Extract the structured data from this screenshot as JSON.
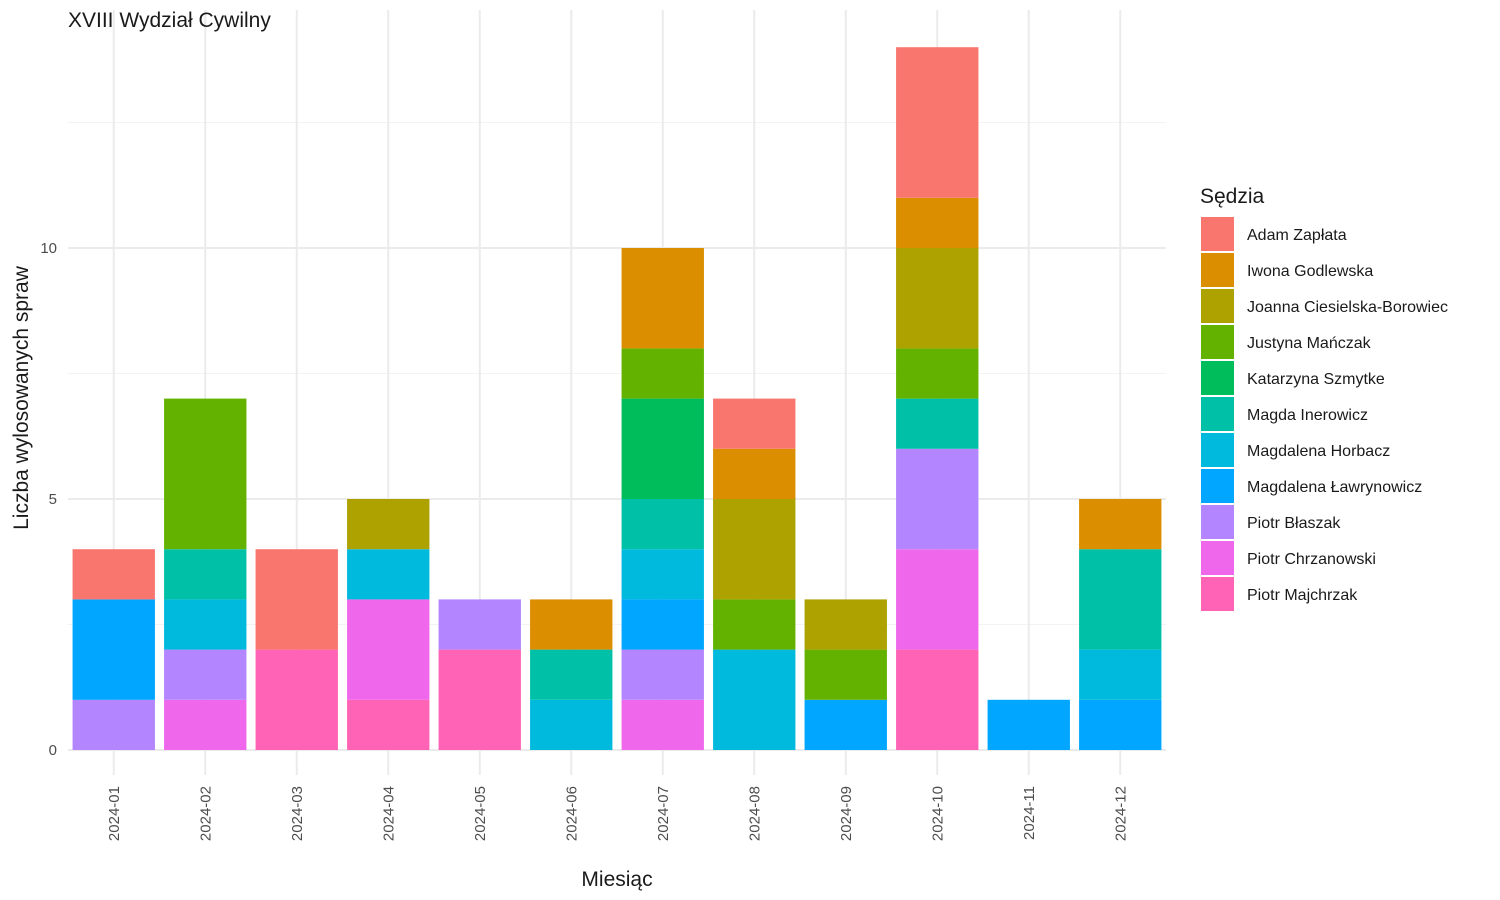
{
  "chart_data": {
    "type": "bar",
    "stacked": true,
    "title": "XVIII Wydział Cywilny",
    "xlabel": "Miesiąc",
    "ylabel": "Liczba wylosowanych spraw",
    "ylim": [
      -0.5,
      14.5
    ],
    "yticks": [
      0,
      5,
      10
    ],
    "grid": true,
    "legend_title": "Sędzia",
    "legend_position": "right",
    "categories": [
      "2024-01",
      "2024-02",
      "2024-03",
      "2024-04",
      "2024-05",
      "2024-06",
      "2024-07",
      "2024-08",
      "2024-09",
      "2024-10",
      "2024-11",
      "2024-12"
    ],
    "series": [
      {
        "name": "Adam Zapłata",
        "color": "#F8766D",
        "values": [
          1,
          0,
          2,
          0,
          0,
          0,
          0,
          1,
          0,
          3,
          0,
          0
        ]
      },
      {
        "name": "Iwona Godlewska",
        "color": "#DB8E00",
        "values": [
          0,
          0,
          0,
          0,
          0,
          1,
          2,
          1,
          0,
          1,
          0,
          1
        ]
      },
      {
        "name": "Joanna Ciesielska-Borowiec",
        "color": "#AEA200",
        "values": [
          0,
          0,
          0,
          1,
          0,
          0,
          0,
          2,
          1,
          2,
          0,
          0
        ]
      },
      {
        "name": "Justyna Mańczak",
        "color": "#64B200",
        "values": [
          0,
          3,
          0,
          0,
          0,
          0,
          1,
          1,
          1,
          1,
          0,
          0
        ]
      },
      {
        "name": "Katarzyna Szmytke",
        "color": "#00BD5C",
        "values": [
          0,
          0,
          0,
          0,
          0,
          0,
          2,
          0,
          0,
          0,
          0,
          0
        ]
      },
      {
        "name": "Magda Inerowicz",
        "color": "#00C1A7",
        "values": [
          0,
          1,
          0,
          0,
          0,
          1,
          1,
          0,
          0,
          1,
          0,
          2
        ]
      },
      {
        "name": "Magdalena Horbacz",
        "color": "#00BADE",
        "values": [
          0,
          1,
          0,
          1,
          0,
          1,
          1,
          2,
          0,
          0,
          0,
          1
        ]
      },
      {
        "name": "Magdalena Ławrynowicz",
        "color": "#00A6FF",
        "values": [
          2,
          0,
          0,
          0,
          0,
          0,
          1,
          0,
          1,
          0,
          1,
          1
        ]
      },
      {
        "name": "Piotr Błaszak",
        "color": "#B385FF",
        "values": [
          1,
          1,
          0,
          0,
          1,
          0,
          1,
          0,
          0,
          2,
          0,
          0
        ]
      },
      {
        "name": "Piotr Chrzanowski",
        "color": "#EF67EB",
        "values": [
          0,
          1,
          0,
          2,
          0,
          0,
          1,
          0,
          0,
          2,
          0,
          0
        ]
      },
      {
        "name": "Piotr Majchrzak",
        "color": "#FF63B6",
        "values": [
          0,
          0,
          2,
          1,
          2,
          0,
          0,
          0,
          0,
          2,
          0,
          0
        ]
      }
    ]
  }
}
